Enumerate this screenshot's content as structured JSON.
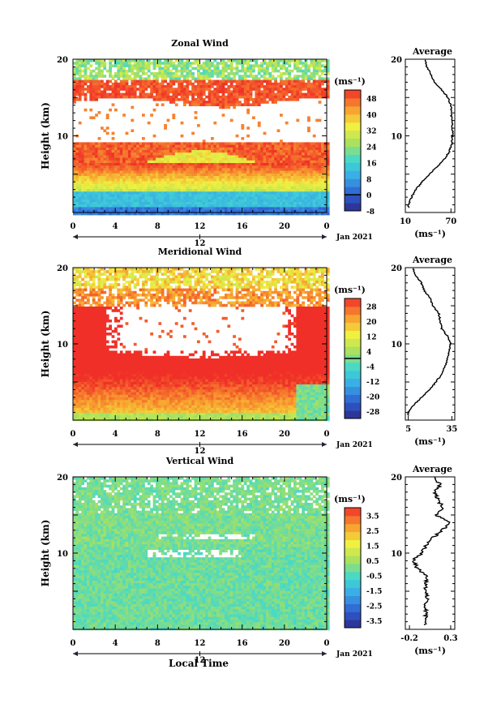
{
  "figure": {
    "common_xlabel": "Local Time",
    "date_label": "Jan 2021",
    "midnight_marker": "12",
    "x_ticks": [
      "0",
      "4",
      "8",
      "12",
      "16",
      "20",
      "0"
    ],
    "y_ticks": [
      "20",
      "10"
    ],
    "ylabel": "Height (km)",
    "unit": "(ms⁻¹)"
  },
  "chart_data": [
    {
      "type": "heatmap",
      "title": "Zonal Wind",
      "ylabel": "Height (km)",
      "xlabel": "",
      "xlim": [
        0,
        24
      ],
      "ylim": [
        0,
        20
      ],
      "colorbar_unit": "(ms⁻¹)",
      "colorbar_ticks": [
        "48",
        "40",
        "32",
        "24",
        "16",
        "8",
        "0",
        "-8"
      ],
      "colorbar_range": [
        -8,
        52
      ],
      "colorbar_zero_line": 0,
      "description_bands": [
        {
          "height_km": [
            17,
            20
          ],
          "value": 30
        },
        {
          "height_km": [
            14,
            17
          ],
          "value": 50
        },
        {
          "height_km": [
            9,
            14
          ],
          "value": "missing"
        },
        {
          "height_km": [
            6,
            9
          ],
          "value": 50
        },
        {
          "height_km": [
            3,
            6
          ],
          "value": 30
        },
        {
          "height_km": [
            0,
            3
          ],
          "value": 8
        }
      ],
      "average": {
        "title": "Average",
        "xlim": [
          10,
          75
        ],
        "x_ticks": [
          "10",
          "70"
        ],
        "xlabel": "(ms⁻¹)",
        "height_km": [
          1,
          2,
          3,
          4,
          5,
          6,
          7,
          8,
          9,
          10,
          11,
          12,
          13,
          14,
          15,
          16,
          17,
          18,
          19,
          20
        ],
        "values": [
          14,
          18,
          24,
          32,
          42,
          52,
          62,
          68,
          71,
          72,
          72,
          71,
          70,
          70,
          66,
          58,
          48,
          44,
          38,
          36
        ]
      }
    },
    {
      "type": "heatmap",
      "title": "Meridional Wind",
      "ylabel": "Height (km)",
      "xlabel": "",
      "xlim": [
        0,
        24
      ],
      "ylim": [
        0,
        20
      ],
      "colorbar_unit": "(ms⁻¹)",
      "colorbar_ticks": [
        "28",
        "20",
        "12",
        "4",
        "-4",
        "-12",
        "-20",
        "-28"
      ],
      "colorbar_range": [
        -32,
        32
      ],
      "colorbar_zero_line": 0,
      "description_bands": [
        {
          "height_km": [
            16,
            20
          ],
          "value": 15
        },
        {
          "height_km": [
            10,
            16
          ],
          "value": "missing"
        },
        {
          "height_km": [
            4,
            10
          ],
          "value": 30
        },
        {
          "height_km": [
            0,
            4
          ],
          "value": 10
        }
      ],
      "average": {
        "title": "Average",
        "xlim": [
          3,
          37
        ],
        "x_ticks": [
          "5",
          "35"
        ],
        "xlabel": "(ms⁻¹)",
        "height_km": [
          1,
          2,
          3,
          4,
          5,
          6,
          7,
          8,
          9,
          10,
          11,
          12,
          13,
          14,
          15,
          16,
          17,
          18,
          19,
          20
        ],
        "values": [
          5,
          9,
          14,
          20,
          24,
          28,
          30,
          32,
          33,
          34,
          32,
          28,
          27,
          26,
          22,
          20,
          16,
          14,
          10,
          8
        ]
      }
    },
    {
      "type": "heatmap",
      "title": "Vertical Wind",
      "ylabel": "Height (km)",
      "xlabel": "Local Time",
      "xlim": [
        0,
        24
      ],
      "ylim": [
        0,
        20
      ],
      "colorbar_unit": "(ms⁻¹)",
      "colorbar_ticks": [
        "3.5",
        "2.5",
        "1.5",
        "0.5",
        "-0.5",
        "-1.5",
        "-2.5",
        "-3.5"
      ],
      "colorbar_range": [
        -4,
        4
      ],
      "colorbar_zero_line": null,
      "description_bands": [
        {
          "height_km": [
            0,
            20
          ],
          "value": 0.2
        }
      ],
      "average": {
        "title": "Average",
        "xlim": [
          -0.25,
          0.35
        ],
        "x_ticks": [
          "-0.2",
          "0.3"
        ],
        "xlabel": "(ms⁻¹)",
        "height_km": [
          1,
          2,
          3,
          4,
          5,
          6,
          7,
          8,
          9,
          10,
          11,
          12,
          13,
          14,
          15,
          16,
          17,
          18,
          19,
          20
        ],
        "values": [
          0.0,
          0.0,
          0.0,
          0.01,
          0.0,
          0.0,
          0.0,
          -0.1,
          -0.16,
          -0.05,
          0.0,
          0.08,
          0.2,
          0.28,
          0.12,
          0.2,
          0.15,
          0.1,
          0.18,
          0.08
        ]
      }
    }
  ]
}
